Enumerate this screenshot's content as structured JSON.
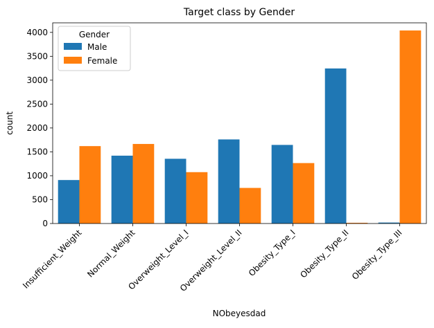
{
  "chart_data": {
    "type": "bar",
    "title": "Target class by Gender",
    "xlabel": "NObeyesdad",
    "ylabel": "count",
    "categories": [
      "Insufficient_Weight",
      "Normal_Weight",
      "Overweight_Level_I",
      "Overweight_Level_II",
      "Obesity_Type_I",
      "Obesity_Type_II",
      "Obesity_Type_III"
    ],
    "series": [
      {
        "name": "Male",
        "color": "#1f77b4",
        "values": [
          910,
          1420,
          1355,
          1760,
          1645,
          3245,
          20
        ]
      },
      {
        "name": "Female",
        "color": "#ff7f0e",
        "values": [
          1620,
          1665,
          1075,
          745,
          1265,
          15,
          4040
        ]
      }
    ],
    "ylim": [
      0,
      4200
    ],
    "yticks": [
      0,
      500,
      1000,
      1500,
      2000,
      2500,
      3000,
      3500,
      4000
    ],
    "legend": {
      "title": "Gender",
      "position": "top-left"
    },
    "grid": false
  }
}
